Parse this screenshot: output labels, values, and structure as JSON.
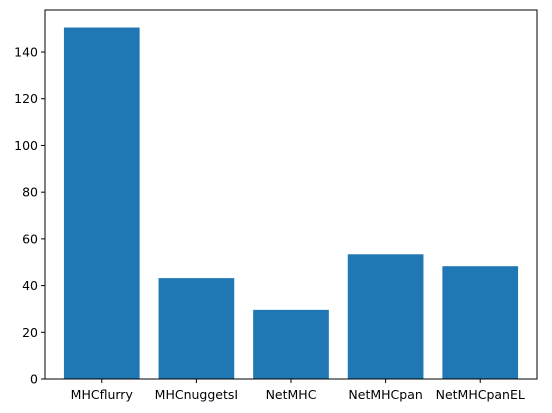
{
  "chart_data": {
    "type": "bar",
    "categories": [
      "MHCflurry",
      "MHCnuggetsI",
      "NetMHC",
      "NetMHCpan",
      "NetMHCpanEL"
    ],
    "values": [
      150.5,
      43.2,
      29.6,
      53.4,
      48.3
    ],
    "title": "",
    "xlabel": "",
    "ylabel": "",
    "ylim": [
      0,
      158
    ],
    "yticks": [
      0,
      20,
      40,
      60,
      80,
      100,
      120,
      140
    ],
    "grid": false,
    "bar_color": "#1f77b4"
  }
}
